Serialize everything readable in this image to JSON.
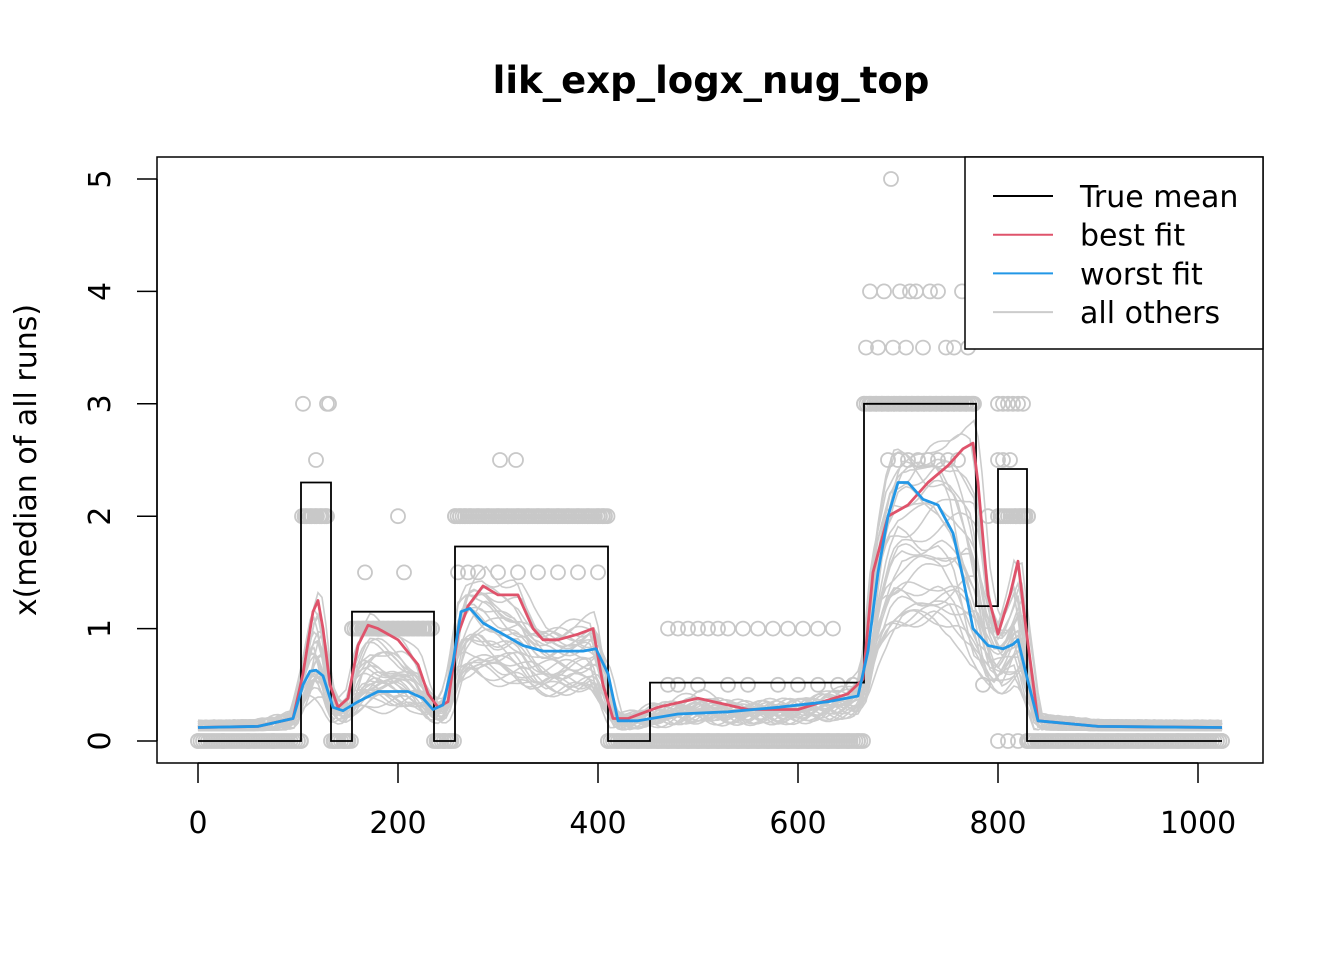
{
  "chart_data": {
    "type": "line",
    "title": "lik_exp_logx_nug_top",
    "xlabel": "",
    "ylabel": "x(median of all runs)",
    "xlim": [
      0,
      1024
    ],
    "ylim": [
      0,
      5
    ],
    "x_ticks": [
      0,
      200,
      400,
      600,
      800,
      1000
    ],
    "x_tick_labels": [
      "0",
      "200",
      "400",
      "600",
      "800",
      "1000"
    ],
    "y_ticks": [
      0,
      1,
      2,
      3,
      4,
      5
    ],
    "y_tick_labels": [
      "0",
      "1",
      "2",
      "3",
      "4",
      "5"
    ],
    "grid": false,
    "legend_position": "top-right",
    "legend": [
      {
        "label": "True mean",
        "color": "#000000"
      },
      {
        "label": "best fit",
        "color": "#DF536B"
      },
      {
        "label": "worst fit",
        "color": "#2297E6"
      },
      {
        "label": "all others",
        "color": "#CCCCCC"
      }
    ],
    "colors": {
      "true_mean": "#000000",
      "best_fit": "#DF536B",
      "worst_fit": "#2297E6",
      "others": "#CCCCCC",
      "points": "#C8C8C8"
    },
    "true_mean": {
      "x": [
        0,
        103,
        103,
        133,
        133,
        154,
        154,
        236,
        236,
        257,
        257,
        410,
        410,
        452,
        452,
        666,
        666,
        778,
        778,
        800,
        800,
        829,
        829,
        1024
      ],
      "y": [
        0,
        0,
        2.3,
        2.3,
        0,
        0,
        1.15,
        1.15,
        0,
        0,
        1.73,
        1.73,
        0,
        0,
        0.52,
        0.52,
        3.0,
        3.0,
        1.2,
        1.2,
        2.42,
        2.42,
        0,
        0
      ]
    },
    "best_fit": {
      "x": [
        0,
        60,
        95,
        105,
        115,
        120,
        125,
        132,
        140,
        150,
        160,
        170,
        180,
        200,
        220,
        230,
        240,
        250,
        260,
        270,
        285,
        300,
        320,
        335,
        345,
        360,
        380,
        395,
        405,
        415,
        430,
        460,
        500,
        550,
        600,
        650,
        665,
        675,
        690,
        710,
        730,
        750,
        765,
        775,
        780,
        790,
        800,
        812,
        820,
        828,
        840,
        900,
        1024
      ],
      "y": [
        0.12,
        0.13,
        0.2,
        0.6,
        1.15,
        1.25,
        1.0,
        0.5,
        0.3,
        0.38,
        0.85,
        1.03,
        1.0,
        0.9,
        0.68,
        0.42,
        0.3,
        0.35,
        0.95,
        1.2,
        1.38,
        1.3,
        1.3,
        1.0,
        0.9,
        0.9,
        0.95,
        1.0,
        0.5,
        0.2,
        0.2,
        0.3,
        0.38,
        0.28,
        0.28,
        0.42,
        0.55,
        1.5,
        2.0,
        2.1,
        2.3,
        2.45,
        2.6,
        2.65,
        2.3,
        1.3,
        0.95,
        1.3,
        1.6,
        1.0,
        0.18,
        0.13,
        0.12
      ]
    },
    "worst_fit": {
      "x": [
        0,
        60,
        95,
        105,
        112,
        118,
        125,
        135,
        145,
        160,
        180,
        210,
        225,
        235,
        245,
        255,
        263,
        272,
        285,
        305,
        325,
        345,
        365,
        385,
        398,
        410,
        420,
        440,
        480,
        530,
        580,
        630,
        660,
        670,
        680,
        690,
        700,
        710,
        725,
        740,
        755,
        765,
        775,
        790,
        805,
        815,
        820,
        828,
        840,
        900,
        1024
      ],
      "y": [
        0.12,
        0.13,
        0.2,
        0.5,
        0.62,
        0.63,
        0.58,
        0.3,
        0.27,
        0.35,
        0.44,
        0.44,
        0.38,
        0.28,
        0.32,
        0.7,
        1.15,
        1.18,
        1.05,
        0.95,
        0.85,
        0.8,
        0.8,
        0.8,
        0.82,
        0.6,
        0.18,
        0.18,
        0.24,
        0.26,
        0.3,
        0.35,
        0.4,
        0.8,
        1.5,
        2.0,
        2.3,
        2.3,
        2.15,
        2.1,
        1.85,
        1.45,
        1.0,
        0.85,
        0.82,
        0.86,
        0.9,
        0.6,
        0.18,
        0.13,
        0.12
      ]
    },
    "points": [
      {
        "x": [
          0,
          25,
          50,
          75,
          103,
          108,
          113,
          118,
          123,
          128,
          136,
          140,
          146,
          150,
          154,
          160,
          165,
          170,
          175,
          180,
          185,
          190,
          195,
          200,
          205,
          210,
          215,
          220,
          225,
          230,
          234,
          240,
          246,
          252,
          257,
          262,
          267
        ],
        "y": [
          0,
          0,
          0,
          0,
          0,
          2,
          2,
          2,
          2,
          2,
          0,
          0,
          0,
          0,
          1,
          1,
          1,
          1,
          1,
          1,
          1,
          1,
          1,
          1,
          1,
          1,
          1,
          1,
          1,
          1,
          1,
          0,
          0,
          0,
          2,
          2,
          2
        ]
      },
      {
        "x": [
          272,
          280,
          290,
          300,
          310,
          320,
          330,
          340,
          350,
          360,
          370,
          380,
          390,
          400,
          405,
          410,
          420,
          430,
          440,
          450,
          460,
          470,
          480,
          490,
          500,
          510,
          520,
          530,
          540,
          550,
          560,
          570,
          580,
          590,
          600,
          610,
          620,
          630,
          640,
          650,
          660
        ],
        "y": [
          2,
          2,
          2,
          2,
          2,
          2,
          2,
          2,
          2,
          2,
          2,
          2,
          2,
          2,
          2,
          0,
          0,
          0,
          0,
          0,
          0,
          0,
          0,
          0,
          0,
          0,
          0,
          0,
          0,
          0,
          0,
          0,
          0,
          0,
          0,
          0,
          0,
          0,
          0,
          0,
          0
        ]
      },
      {
        "x": [
          260,
          270,
          280,
          300,
          320,
          340,
          360,
          380,
          400,
          470,
          480,
          490,
          500,
          510,
          520,
          530,
          545,
          560,
          575,
          590,
          605,
          620,
          635,
          470,
          480,
          500,
          530,
          550,
          580,
          600,
          620,
          640,
          655
        ],
        "y": [
          1.5,
          1.5,
          1.5,
          1.5,
          1.5,
          1.5,
          1.5,
          1.5,
          1.5,
          1,
          1,
          1,
          1,
          1,
          1,
          1,
          1,
          1,
          1,
          1,
          1,
          1,
          1,
          0.5,
          0.5,
          0.5,
          0.5,
          0.5,
          0.5,
          0.5,
          0.5,
          0.5,
          0.5
        ]
      },
      {
        "x": [
          666,
          672,
          678,
          684,
          690,
          696,
          702,
          708,
          714,
          720,
          726,
          732,
          738,
          744,
          750,
          756,
          762,
          768,
          775,
          668,
          672,
          680,
          686,
          695,
          702,
          708,
          712,
          718,
          725,
          732,
          740,
          748,
          756,
          764,
          770,
          690,
          700,
          710,
          720,
          730,
          740,
          750,
          760
        ],
        "y": [
          3,
          3,
          3,
          3,
          3,
          3,
          3,
          3,
          3,
          3,
          3,
          3,
          3,
          3,
          3,
          3,
          3,
          3,
          3,
          3.5,
          4,
          3.5,
          4,
          3.5,
          4,
          3.5,
          4,
          4,
          3.5,
          4,
          4,
          3.5,
          3.5,
          4,
          3.5,
          2.5,
          2.5,
          2.5,
          2.5,
          2.5,
          2.5,
          2.5,
          2.5
        ]
      },
      {
        "x": [
          693,
          785,
          790,
          800,
          805,
          810,
          815,
          820,
          825,
          830,
          800,
          805,
          812,
          818,
          822,
          826,
          830,
          800,
          810,
          820,
          830,
          840,
          860,
          880,
          900,
          920,
          940,
          960,
          980,
          1000,
          1024,
          105,
          118,
          200,
          167,
          206,
          318,
          302,
          131,
          129
        ],
        "y": [
          5,
          0.5,
          2,
          3,
          3,
          3,
          3,
          3,
          3,
          2,
          2.5,
          2.5,
          2.5,
          2,
          2,
          2,
          2,
          0,
          0,
          0,
          0,
          0,
          0,
          0,
          0,
          0,
          0,
          0,
          0,
          0,
          0,
          3,
          2.5,
          2,
          1.5,
          1.5,
          2.5,
          2.5,
          3,
          3
        ]
      }
    ]
  }
}
